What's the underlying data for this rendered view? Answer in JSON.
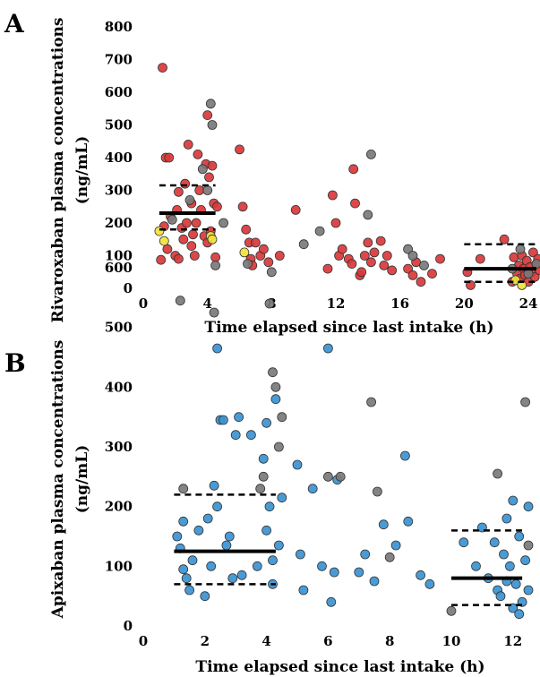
{
  "panels": [
    {
      "letter": "A",
      "xlabel": "Time elapsed since last intake (h)",
      "ylabel_line1": "Rivaroxaban plasma concentrations",
      "ylabel_line2": "(ng/mL)",
      "xticks": [
        "0",
        "4",
        "8",
        "12",
        "16",
        "20",
        "24"
      ],
      "yticks": [
        "0",
        "100",
        "200",
        "300",
        "400",
        "500",
        "600",
        "700",
        "800"
      ]
    },
    {
      "letter": "B",
      "xlabel": "Time elapsed since last intake (h)",
      "ylabel_line1": "Apixaban plasma concentrations",
      "ylabel_line2": "(ng/mL)",
      "xticks": [
        "0",
        "2",
        "4",
        "6",
        "8",
        "10",
        "12"
      ],
      "yticks": [
        "0",
        "100",
        "200",
        "300",
        "400",
        "500",
        "600"
      ]
    }
  ],
  "colors": {
    "rivaroxaban": "#d9383a",
    "apixaban": "#3a93d3",
    "grey": "#7a7a7a",
    "yellow": "#f2e23a"
  },
  "chart_data": [
    {
      "type": "scatter",
      "xlim": [
        0,
        24
      ],
      "ylim": [
        0,
        800
      ],
      "series": [
        {
          "color": "#d9383a",
          "points": [
            [
              1.2,
              675
            ],
            [
              1.4,
              400
            ],
            [
              1.6,
              400
            ],
            [
              1.1,
              87
            ],
            [
              1.5,
              120
            ],
            [
              1.7,
              220
            ],
            [
              2.0,
              100
            ],
            [
              2.1,
              240
            ],
            [
              2.2,
              295
            ],
            [
              2.4,
              185
            ],
            [
              2.5,
              150
            ],
            [
              2.6,
              320
            ],
            [
              2.8,
              440
            ],
            [
              3.0,
              260
            ],
            [
              3.0,
              130
            ],
            [
              3.2,
              100
            ],
            [
              3.3,
              200
            ],
            [
              3.4,
              410
            ],
            [
              3.5,
              300
            ],
            [
              3.6,
              240
            ],
            [
              3.8,
              160
            ],
            [
              3.9,
              380
            ],
            [
              4.0,
              530
            ],
            [
              4.0,
              140
            ],
            [
              4.1,
              340
            ],
            [
              4.2,
              175
            ],
            [
              4.3,
              375
            ],
            [
              4.4,
              260
            ],
            [
              4.5,
              95
            ],
            [
              4.6,
              250
            ],
            [
              2.2,
              90
            ],
            [
              2.7,
              200
            ],
            [
              3.1,
              165
            ],
            [
              1.3,
              190
            ],
            [
              6.0,
              425
            ],
            [
              6.2,
              250
            ],
            [
              6.4,
              180
            ],
            [
              6.6,
              140
            ],
            [
              6.7,
              90
            ],
            [
              6.8,
              70
            ],
            [
              7.0,
              140
            ],
            [
              7.3,
              100
            ],
            [
              7.5,
              120
            ],
            [
              7.8,
              80
            ],
            [
              8.5,
              100
            ],
            [
              9.5,
              240
            ],
            [
              11.5,
              60
            ],
            [
              11.8,
              285
            ],
            [
              12.0,
              200
            ],
            [
              12.2,
              100
            ],
            [
              12.4,
              120
            ],
            [
              12.8,
              90
            ],
            [
              13.0,
              75
            ],
            [
              13.1,
              365
            ],
            [
              13.2,
              260
            ],
            [
              13.5,
              40
            ],
            [
              13.6,
              50
            ],
            [
              13.8,
              100
            ],
            [
              14.0,
              140
            ],
            [
              14.2,
              80
            ],
            [
              14.4,
              110
            ],
            [
              14.8,
              145
            ],
            [
              15.0,
              70
            ],
            [
              15.2,
              100
            ],
            [
              15.5,
              55
            ],
            [
              16.5,
              60
            ],
            [
              16.8,
              40
            ],
            [
              17.0,
              80
            ],
            [
              17.3,
              20
            ],
            [
              18.0,
              45
            ],
            [
              18.5,
              90
            ],
            [
              20.2,
              50
            ],
            [
              20.4,
              10
            ],
            [
              21.0,
              90
            ],
            [
              22.5,
              150
            ],
            [
              23.0,
              20
            ],
            [
              23.1,
              95
            ],
            [
              23.3,
              45
            ],
            [
              23.4,
              70
            ],
            [
              23.5,
              30
            ],
            [
              23.6,
              100
            ],
            [
              23.7,
              60
            ],
            [
              23.8,
              40
            ],
            [
              23.9,
              85
            ],
            [
              24.0,
              20
            ],
            [
              24.1,
              65
            ],
            [
              24.2,
              50
            ],
            [
              24.3,
              110
            ],
            [
              24.4,
              35
            ],
            [
              24.5,
              75
            ],
            [
              24.6,
              90
            ],
            [
              24.7,
              55
            ]
          ]
        },
        {
          "color": "#7a7a7a",
          "points": [
            [
              1.8,
              210
            ],
            [
              2.9,
              270
            ],
            [
              3.7,
              365
            ],
            [
              4.0,
              300
            ],
            [
              4.2,
              565
            ],
            [
              4.3,
              500
            ],
            [
              4.5,
              70
            ],
            [
              5.0,
              200
            ],
            [
              6.5,
              75
            ],
            [
              8.0,
              50
            ],
            [
              10.0,
              135
            ],
            [
              11.0,
              175
            ],
            [
              14.0,
              225
            ],
            [
              14.2,
              410
            ],
            [
              16.5,
              120
            ],
            [
              16.8,
              100
            ],
            [
              17.5,
              70
            ],
            [
              23.0,
              60
            ],
            [
              23.5,
              120
            ],
            [
              24.0,
              45
            ],
            [
              24.5,
              75
            ]
          ]
        },
        {
          "color": "#f2e23a",
          "points": [
            [
              1.0,
              175
            ],
            [
              1.3,
              145
            ],
            [
              4.2,
              160
            ],
            [
              4.3,
              150
            ],
            [
              6.3,
              110
            ],
            [
              23.2,
              25
            ],
            [
              23.6,
              10
            ]
          ]
        }
      ],
      "reference_lines": [
        {
          "style": "solid",
          "y": 230,
          "x": [
            1,
            4.5
          ]
        },
        {
          "style": "dashed",
          "y": 315,
          "x": [
            1,
            4.5
          ]
        },
        {
          "style": "dashed",
          "y": 180,
          "x": [
            1,
            4.5
          ]
        },
        {
          "style": "solid",
          "y": 60,
          "x": [
            20,
            24.5
          ]
        },
        {
          "style": "dashed",
          "y": 135,
          "x": [
            20,
            24.5
          ]
        },
        {
          "style": "dashed",
          "y": 20,
          "x": [
            20,
            24.5
          ]
        }
      ]
    },
    {
      "type": "scatter",
      "xlim": [
        0,
        12.5
      ],
      "ylim": [
        0,
        600
      ],
      "series": [
        {
          "color": "#3a93d3",
          "points": [
            [
              1.1,
              150
            ],
            [
              1.2,
              130
            ],
            [
              1.3,
              175
            ],
            [
              1.3,
              95
            ],
            [
              1.4,
              80
            ],
            [
              1.5,
              60
            ],
            [
              1.6,
              110
            ],
            [
              1.8,
              160
            ],
            [
              2.0,
              50
            ],
            [
              2.1,
              180
            ],
            [
              2.2,
              100
            ],
            [
              2.3,
              235
            ],
            [
              2.4,
              200
            ],
            [
              2.4,
              465
            ],
            [
              2.5,
              345
            ],
            [
              2.6,
              345
            ],
            [
              2.7,
              135
            ],
            [
              2.8,
              150
            ],
            [
              2.9,
              80
            ],
            [
              3.0,
              320
            ],
            [
              3.1,
              350
            ],
            [
              3.2,
              85
            ],
            [
              3.5,
              320
            ],
            [
              3.7,
              100
            ],
            [
              3.9,
              280
            ],
            [
              4.0,
              160
            ],
            [
              4.0,
              340
            ],
            [
              4.1,
              200
            ],
            [
              4.2,
              110
            ],
            [
              4.2,
              70
            ],
            [
              4.3,
              380
            ],
            [
              4.4,
              135
            ],
            [
              4.5,
              215
            ],
            [
              5.0,
              270
            ],
            [
              5.1,
              120
            ],
            [
              5.2,
              60
            ],
            [
              5.5,
              230
            ],
            [
              5.8,
              100
            ],
            [
              6.0,
              465
            ],
            [
              6.1,
              40
            ],
            [
              6.2,
              90
            ],
            [
              6.3,
              245
            ],
            [
              7.0,
              90
            ],
            [
              7.2,
              120
            ],
            [
              7.5,
              75
            ],
            [
              7.8,
              170
            ],
            [
              8.2,
              135
            ],
            [
              8.5,
              285
            ],
            [
              8.6,
              175
            ],
            [
              9.0,
              85
            ],
            [
              9.3,
              70
            ],
            [
              10.4,
              140
            ],
            [
              10.8,
              100
            ],
            [
              11.0,
              165
            ],
            [
              11.2,
              80
            ],
            [
              11.4,
              140
            ],
            [
              11.5,
              60
            ],
            [
              11.6,
              50
            ],
            [
              11.7,
              120
            ],
            [
              11.8,
              180
            ],
            [
              11.9,
              100
            ],
            [
              12.0,
              30
            ],
            [
              12.0,
              210
            ],
            [
              12.1,
              70
            ],
            [
              12.2,
              150
            ],
            [
              12.3,
              40
            ],
            [
              12.4,
              110
            ],
            [
              12.5,
              200
            ],
            [
              12.5,
              60
            ],
            [
              12.2,
              20
            ],
            [
              11.8,
              75
            ]
          ]
        },
        {
          "color": "#7a7a7a",
          "points": [
            [
              1.2,
              545
            ],
            [
              1.3,
              230
            ],
            [
              2.3,
              525
            ],
            [
              3.8,
              230
            ],
            [
              3.9,
              250
            ],
            [
              4.1,
              540
            ],
            [
              4.2,
              425
            ],
            [
              4.3,
              400
            ],
            [
              4.4,
              300
            ],
            [
              4.5,
              350
            ],
            [
              6.0,
              250
            ],
            [
              6.4,
              250
            ],
            [
              7.4,
              375
            ],
            [
              7.6,
              225
            ],
            [
              8.0,
              115
            ],
            [
              10.0,
              25
            ],
            [
              11.5,
              255
            ],
            [
              12.4,
              375
            ],
            [
              12.5,
              135
            ]
          ]
        }
      ],
      "reference_lines": [
        {
          "style": "solid",
          "y": 125,
          "x": [
            1,
            4.3
          ]
        },
        {
          "style": "dashed",
          "y": 220,
          "x": [
            1,
            4.3
          ]
        },
        {
          "style": "dashed",
          "y": 70,
          "x": [
            1,
            4.3
          ]
        },
        {
          "style": "solid",
          "y": 80,
          "x": [
            10,
            12.3
          ]
        },
        {
          "style": "dashed",
          "y": 160,
          "x": [
            10,
            12.3
          ]
        },
        {
          "style": "dashed",
          "y": 35,
          "x": [
            10,
            12.3
          ]
        }
      ]
    }
  ]
}
